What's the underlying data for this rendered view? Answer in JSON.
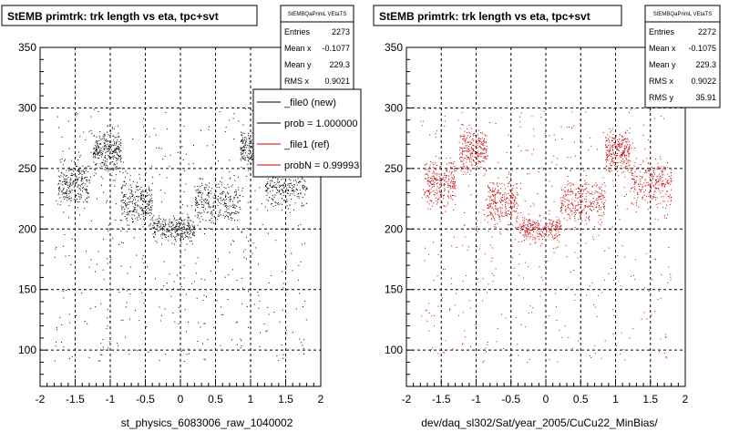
{
  "chart_data": [
    {
      "type": "scatter",
      "title": "StEMB primtrk: trk length vs eta, tpc+svt",
      "xlabel": "st_physics_6083006_raw_1040002",
      "ylabel": "",
      "xlim": [
        -2,
        2
      ],
      "ylim": [
        70,
        350
      ],
      "x_ticks": [
        "-2",
        "-1.5",
        "-1",
        "-0.5",
        "0",
        "0.5",
        "1",
        "1.5",
        "2"
      ],
      "y_ticks": [
        "100",
        "150",
        "200",
        "250",
        "300",
        "350"
      ],
      "grid": true,
      "color": "#000000",
      "stats": {
        "name": "StEMBQaPrimL VEtaTS",
        "rows": [
          {
            "label": "Entries",
            "value": "2273"
          },
          {
            "label": "Mean x",
            "value": "-0.1077"
          },
          {
            "label": "Mean y",
            "value": "229.3"
          },
          {
            "label": "RMS x",
            "value": "0.9021"
          }
        ]
      },
      "legend": {
        "placement": "top-right",
        "entries": [
          {
            "label": "_file0 (new)",
            "color": "#000000"
          },
          {
            "label": "prob = 1.000000",
            "color": "#000000"
          },
          {
            "label": "_file1 (ref)",
            "color": "#cc0000"
          },
          {
            "label": "probN = 0.99993",
            "color": "#cc0000"
          }
        ]
      },
      "distribution": {
        "entries": 2273,
        "bands": [
          {
            "x": [
              -1.75,
              -1.3
            ],
            "y": [
              210,
              265
            ]
          },
          {
            "x": [
              -1.25,
              -0.85
            ],
            "y": [
              240,
              290
            ]
          },
          {
            "x": [
              -0.85,
              -0.4
            ],
            "y": [
              195,
              250
            ]
          },
          {
            "x": [
              -0.4,
              0.2
            ],
            "y": [
              185,
              215
            ]
          },
          {
            "x": [
              0.2,
              0.85
            ],
            "y": [
              195,
              250
            ]
          },
          {
            "x": [
              0.85,
              1.2
            ],
            "y": [
              240,
              290
            ]
          },
          {
            "x": [
              1.2,
              1.8
            ],
            "y": [
              210,
              265
            ]
          }
        ],
        "background": {
          "x": [
            -1.8,
            1.8
          ],
          "y": [
            90,
            300
          ]
        }
      }
    },
    {
      "type": "scatter",
      "title": "StEMB primtrk: trk length vs eta, tpc+svt",
      "xlabel": "dev/daq_sl302/Sat/year_2005/CuCu22_MinBias/",
      "ylabel": "",
      "xlim": [
        -2,
        2
      ],
      "ylim": [
        70,
        350
      ],
      "x_ticks": [
        "-2",
        "-1.5",
        "-1",
        "-0.5",
        "0",
        "0.5",
        "1",
        "1.5",
        "2"
      ],
      "y_ticks": [
        "100",
        "150",
        "200",
        "250",
        "300",
        "350"
      ],
      "grid": true,
      "color": "#cc0000",
      "stats": {
        "name": "StEMBQaPrimL VEtaTS",
        "rows": [
          {
            "label": "Entries",
            "value": "2272"
          },
          {
            "label": "Mean x",
            "value": "-0.1075"
          },
          {
            "label": "Mean y",
            "value": "229.3"
          },
          {
            "label": "RMS x",
            "value": "0.9022"
          },
          {
            "label": "RMS y",
            "value": "35.91"
          }
        ]
      },
      "distribution": {
        "entries": 2272,
        "bands": [
          {
            "x": [
              -1.75,
              -1.3
            ],
            "y": [
              210,
              265
            ]
          },
          {
            "x": [
              -1.25,
              -0.85
            ],
            "y": [
              240,
              290
            ]
          },
          {
            "x": [
              -0.85,
              -0.4
            ],
            "y": [
              195,
              250
            ]
          },
          {
            "x": [
              -0.4,
              0.2
            ],
            "y": [
              185,
              215
            ]
          },
          {
            "x": [
              0.2,
              0.85
            ],
            "y": [
              195,
              250
            ]
          },
          {
            "x": [
              0.85,
              1.2
            ],
            "y": [
              240,
              290
            ]
          },
          {
            "x": [
              1.2,
              1.8
            ],
            "y": [
              210,
              265
            ]
          }
        ],
        "background": {
          "x": [
            -1.8,
            1.8
          ],
          "y": [
            90,
            300
          ]
        }
      }
    }
  ]
}
